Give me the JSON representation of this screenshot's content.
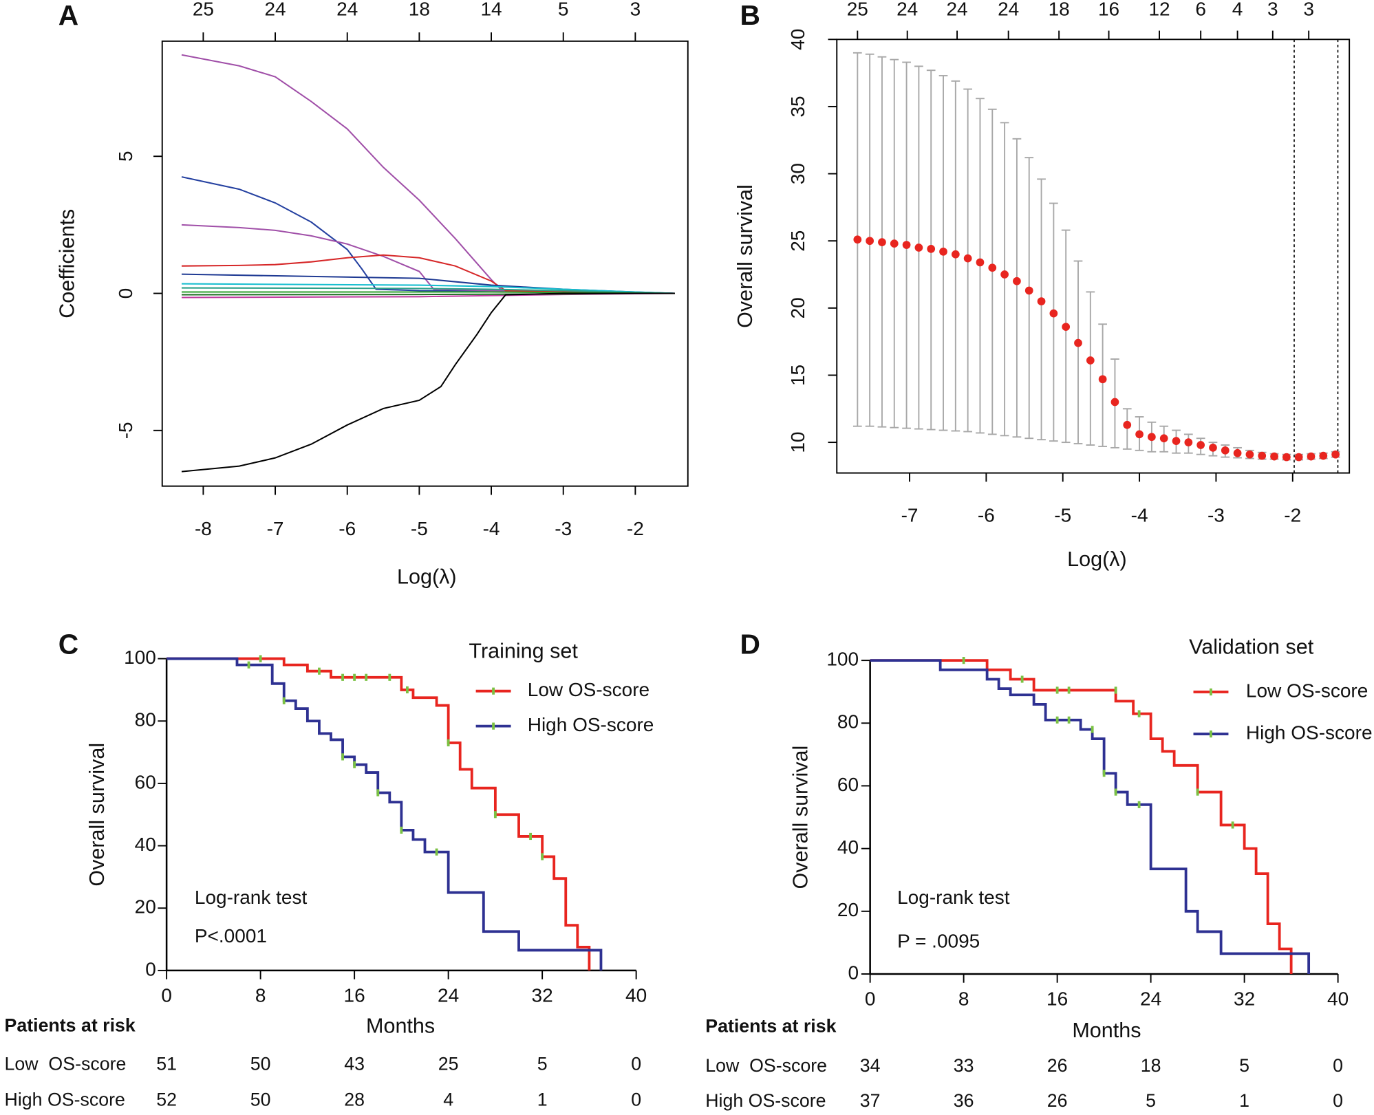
{
  "chart_data": [
    {
      "type": "line",
      "panel_label": "A",
      "frame": true,
      "xlabel": "Log(λ)",
      "ylabel": "Coefficients",
      "xlim": [
        -8.57,
        -1.27
      ],
      "ylim": [
        -7.03,
        9.2
      ],
      "xticks": [
        -8,
        -7,
        -6,
        -5,
        -4,
        -3,
        -2
      ],
      "yticks": [
        -5,
        0,
        5
      ],
      "x2ticks": [
        {
          "value": -8,
          "label": "25"
        },
        {
          "value": -7,
          "label": "24"
        },
        {
          "value": -6,
          "label": "24"
        },
        {
          "value": -5,
          "label": "18"
        },
        {
          "value": -4,
          "label": "14"
        },
        {
          "value": -3,
          "label": "5"
        },
        {
          "value": -2,
          "label": "3"
        }
      ],
      "series": [
        {
          "color": "#a04fa8",
          "x": [
            -8.3,
            -7.5,
            -7,
            -6.5,
            -6,
            -5.5,
            -5,
            -4.5,
            -4.2,
            -4,
            -3.85,
            -3,
            -2,
            -1.45
          ],
          "values": [
            8.7,
            8.3,
            7.9,
            7.0,
            6.0,
            4.6,
            3.4,
            2.0,
            1.1,
            0.5,
            0.1,
            0.05,
            0.02,
            0
          ]
        },
        {
          "color": "#2440a0",
          "x": [
            -8.3,
            -7.5,
            -7,
            -6.5,
            -6,
            -5.8,
            -5.6,
            -5,
            -4,
            -3,
            -2,
            -1.45
          ],
          "values": [
            4.25,
            3.8,
            3.3,
            2.6,
            1.6,
            0.9,
            0.15,
            0.1,
            0.08,
            0.05,
            0.02,
            0
          ]
        },
        {
          "color": "#a04fa8",
          "x": [
            -8.3,
            -7.5,
            -7,
            -6.5,
            -6,
            -5.5,
            -5,
            -4.8,
            -4,
            -3,
            -2,
            -1.45
          ],
          "values": [
            2.5,
            2.4,
            2.3,
            2.1,
            1.8,
            1.35,
            0.8,
            0.15,
            0.1,
            0.05,
            0.02,
            0
          ]
        },
        {
          "color": "#d62728",
          "x": [
            -8.3,
            -7.5,
            -7,
            -6.5,
            -6,
            -5.5,
            -5,
            -4.5,
            -4,
            -3.8,
            -3,
            -2,
            -1.45
          ],
          "values": [
            1.0,
            1.02,
            1.05,
            1.15,
            1.3,
            1.4,
            1.3,
            1.0,
            0.45,
            0.1,
            0.05,
            0.02,
            0
          ]
        },
        {
          "color": "#1f3a93",
          "x": [
            -8.3,
            -5,
            -4,
            -3,
            -2,
            -1.45
          ],
          "values": [
            0.7,
            0.55,
            0.3,
            0.15,
            0.05,
            0
          ]
        },
        {
          "color": "#17becf",
          "x": [
            -8.3,
            -5,
            -4,
            -3,
            -2,
            -1.45
          ],
          "values": [
            0.35,
            0.3,
            0.25,
            0.15,
            0.05,
            0
          ]
        },
        {
          "color": "#2ca089",
          "x": [
            -8.3,
            -5,
            -4,
            -3,
            -2,
            -1.45
          ],
          "values": [
            0.2,
            0.18,
            0.15,
            0.1,
            0.03,
            0
          ]
        },
        {
          "color": "#2ca02c",
          "x": [
            -8.3,
            -5,
            -4,
            -3,
            -2,
            -1.45
          ],
          "values": [
            0.05,
            0.05,
            0.05,
            0.03,
            0.01,
            0
          ]
        },
        {
          "color": "#c03ca0",
          "x": [
            -8.3,
            -5,
            -4,
            -3,
            -2,
            -1.45
          ],
          "values": [
            -0.15,
            -0.12,
            -0.08,
            -0.04,
            -0.01,
            0
          ]
        },
        {
          "color": "#1b6e20",
          "x": [
            -8.3,
            -5,
            -4,
            -3,
            -2,
            -1.45
          ],
          "values": [
            -0.05,
            -0.04,
            -0.03,
            -0.02,
            0,
            0
          ]
        },
        {
          "color": "#000000",
          "x": [
            -8.3,
            -7.5,
            -7,
            -6.5,
            -6,
            -5.5,
            -5,
            -4.7,
            -4.5,
            -4.2,
            -4,
            -3.8,
            -3,
            -2,
            -1.45
          ],
          "values": [
            -6.5,
            -6.3,
            -6.0,
            -5.5,
            -4.8,
            -4.2,
            -3.9,
            -3.4,
            -2.6,
            -1.5,
            -0.7,
            -0.05,
            0,
            0,
            0
          ]
        }
      ]
    },
    {
      "type": "errorbar",
      "panel_label": "B",
      "frame": true,
      "xlabel": "Log(λ)",
      "ylabel": "Overall survival",
      "xlim": [
        -7.95,
        -1.26
      ],
      "ylim": [
        7.72,
        40
      ],
      "xticks": [
        -7,
        -6,
        -5,
        -4,
        -3,
        -2
      ],
      "yticks": [
        10,
        15,
        20,
        25,
        30,
        35,
        40
      ],
      "x2ticks": [
        {
          "value": -7.68,
          "label": "25"
        },
        {
          "value": -7.03,
          "label": "24"
        },
        {
          "value": -6.38,
          "label": "24"
        },
        {
          "value": -5.71,
          "label": "24"
        },
        {
          "value": -5.05,
          "label": "18"
        },
        {
          "value": -4.4,
          "label": "16"
        },
        {
          "value": -3.74,
          "label": "12"
        },
        {
          "value": -3.2,
          "label": "6"
        },
        {
          "value": -2.72,
          "label": "4"
        },
        {
          "value": -2.26,
          "label": "3"
        },
        {
          "value": -1.79,
          "label": "3"
        }
      ],
      "vlines": [
        -1.98,
        -1.41
      ],
      "color": "#e8251f",
      "bar_color": "#a8a8a8",
      "x": [
        -7.68,
        -7.52,
        -7.36,
        -7.2,
        -7.04,
        -6.88,
        -6.72,
        -6.56,
        -6.4,
        -6.24,
        -6.08,
        -5.92,
        -5.76,
        -5.6,
        -5.44,
        -5.28,
        -5.12,
        -4.96,
        -4.8,
        -4.64,
        -4.48,
        -4.32,
        -4.16,
        -4.0,
        -3.84,
        -3.68,
        -3.52,
        -3.36,
        -3.2,
        -3.04,
        -2.88,
        -2.72,
        -2.56,
        -2.4,
        -2.24,
        -2.08,
        -1.92,
        -1.76,
        -1.6,
        -1.44
      ],
      "values": [
        25.1,
        25.0,
        24.9,
        24.8,
        24.7,
        24.5,
        24.4,
        24.2,
        24.0,
        23.7,
        23.4,
        23.0,
        22.5,
        22.0,
        21.3,
        20.5,
        19.6,
        18.6,
        17.4,
        16.1,
        14.7,
        13.0,
        11.3,
        10.6,
        10.4,
        10.3,
        10.1,
        10.0,
        9.8,
        9.6,
        9.4,
        9.2,
        9.1,
        9.0,
        8.95,
        8.9,
        8.9,
        8.95,
        9.0,
        9.1
      ],
      "upper": [
        39.0,
        38.9,
        38.7,
        38.5,
        38.3,
        38.0,
        37.7,
        37.3,
        36.9,
        36.3,
        35.6,
        34.8,
        33.8,
        32.6,
        31.2,
        29.6,
        27.8,
        25.8,
        23.5,
        21.2,
        18.8,
        16.2,
        12.5,
        11.9,
        11.5,
        11.2,
        10.9,
        10.6,
        10.3,
        10.0,
        9.8,
        9.6,
        9.4,
        9.25,
        9.15,
        9.1,
        9.1,
        9.15,
        9.2,
        9.3
      ],
      "lower": [
        11.2,
        11.2,
        11.15,
        11.1,
        11.05,
        11.0,
        10.95,
        10.9,
        10.85,
        10.8,
        10.7,
        10.6,
        10.5,
        10.4,
        10.3,
        10.2,
        10.1,
        10.0,
        9.9,
        9.8,
        9.7,
        9.6,
        9.5,
        9.4,
        9.3,
        9.3,
        9.2,
        9.2,
        9.1,
        9.0,
        8.9,
        8.85,
        8.8,
        8.75,
        8.75,
        8.7,
        8.7,
        8.75,
        8.8,
        8.9
      ]
    },
    {
      "type": "survival",
      "panel_label": "C",
      "frame": false,
      "xlabel": "Months",
      "ylabel": "Overall survival",
      "xlim": [
        0,
        40
      ],
      "ylim": [
        0,
        100
      ],
      "xticks": [
        0,
        8,
        16,
        24,
        32,
        40
      ],
      "yticks": [
        0,
        20,
        40,
        60,
        80,
        100
      ],
      "legend_title": "Training set",
      "censor_color": "#7ac143",
      "annotations": [
        "Log-rank test",
        "P<.0001"
      ],
      "series": [
        {
          "name": "Low OS-score",
          "color": "#e8251f",
          "x": [
            0,
            10,
            12,
            14,
            20,
            21,
            23,
            24,
            25,
            26,
            28,
            30,
            32,
            33,
            34,
            35,
            36
          ],
          "values": [
            100,
            98,
            96,
            94,
            90,
            87.5,
            85,
            73,
            64.5,
            58.5,
            50,
            43,
            36.5,
            29.5,
            14.5,
            7.5,
            0
          ],
          "censored_x": [
            8,
            13,
            15,
            16,
            17,
            19,
            20.5,
            24,
            28,
            31,
            32
          ],
          "censored_values": [
            100,
            96,
            94,
            94,
            94,
            94,
            90,
            73,
            50,
            43,
            36.5
          ]
        },
        {
          "name": "High OS-score",
          "color": "#2e3192",
          "x": [
            0,
            6,
            9,
            10,
            11,
            12,
            13,
            14,
            15,
            16,
            17,
            18,
            19,
            20,
            21,
            22,
            24,
            27,
            30,
            37
          ],
          "values": [
            100,
            98,
            92,
            86.5,
            84,
            80,
            76,
            74,
            68.5,
            66,
            63.5,
            57,
            54,
            45,
            42,
            38,
            25,
            12.5,
            6.5,
            0
          ],
          "censored_x": [
            7,
            10,
            15,
            16,
            18,
            20,
            23
          ],
          "censored_values": [
            98,
            86.5,
            68.5,
            66,
            57,
            45,
            38
          ]
        }
      ],
      "risk_table": {
        "title": "Patients at risk",
        "rows": [
          {
            "label": "Low  OS-score",
            "values": [
              51,
              50,
              43,
              25,
              5,
              0
            ]
          },
          {
            "label": "High OS-score",
            "values": [
              52,
              50,
              28,
              4,
              1,
              0
            ]
          }
        ]
      }
    },
    {
      "type": "survival",
      "panel_label": "D",
      "frame": false,
      "xlabel": "Months",
      "ylabel": "Overall survival",
      "xlim": [
        0,
        40
      ],
      "ylim": [
        0,
        100
      ],
      "xticks": [
        0,
        8,
        16,
        24,
        32,
        40
      ],
      "yticks": [
        0,
        20,
        40,
        60,
        80,
        100
      ],
      "legend_title": "Validation set",
      "censor_color": "#7ac143",
      "annotations": [
        "Log-rank test",
        "P = .0095"
      ],
      "series": [
        {
          "name": "Low OS-score",
          "color": "#e8251f",
          "x": [
            0,
            10,
            12,
            14,
            21,
            22.5,
            24,
            25,
            26,
            28,
            30,
            32,
            33,
            34,
            35,
            36
          ],
          "values": [
            100,
            97,
            94,
            90.5,
            87,
            83,
            75,
            71,
            66.5,
            58,
            47.5,
            40,
            32,
            16,
            8,
            0
          ],
          "censored_x": [
            8,
            13,
            16,
            17,
            21,
            23,
            28,
            31
          ],
          "censored_values": [
            100,
            94,
            90.5,
            90.5,
            90.5,
            83,
            58,
            47.5
          ]
        },
        {
          "name": "High OS-score",
          "color": "#2e3192",
          "x": [
            0,
            6,
            10,
            11,
            12,
            14,
            15,
            18,
            19,
            20,
            21,
            22,
            24,
            27,
            28,
            30,
            37.5
          ],
          "values": [
            100,
            97,
            94,
            91,
            89,
            86,
            81,
            78,
            75,
            64,
            58,
            54,
            33.5,
            20,
            13.5,
            6.5,
            0
          ],
          "censored_x": [
            16,
            17,
            19,
            20,
            21,
            23
          ],
          "censored_values": [
            81,
            81,
            78,
            64,
            58,
            54
          ]
        }
      ],
      "risk_table": {
        "title": "Patients at risk",
        "rows": [
          {
            "label": "Low  OS-score",
            "values": [
              34,
              33,
              26,
              18,
              5,
              0
            ]
          },
          {
            "label": "High OS-score",
            "values": [
              37,
              36,
              26,
              5,
              1,
              0
            ]
          }
        ]
      }
    }
  ]
}
